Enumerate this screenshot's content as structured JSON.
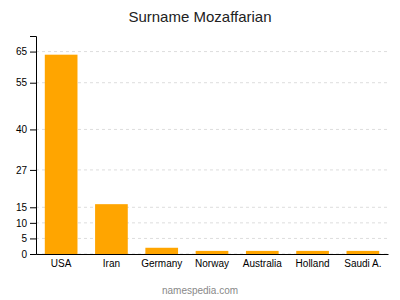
{
  "chart_data": {
    "type": "bar",
    "title": "Surname Mozaffarian",
    "categories": [
      "USA",
      "Iran",
      "Germany",
      "Norway",
      "Australia",
      "Holland",
      "Saudi A."
    ],
    "values": [
      64,
      16,
      2,
      1,
      1,
      1,
      1
    ],
    "color": "#FFA500",
    "ylim": [
      0,
      70
    ],
    "yticks": [
      0,
      5,
      10,
      15,
      27,
      40,
      55,
      65
    ],
    "grid": true,
    "annotations": [
      "namespedia.com"
    ]
  }
}
